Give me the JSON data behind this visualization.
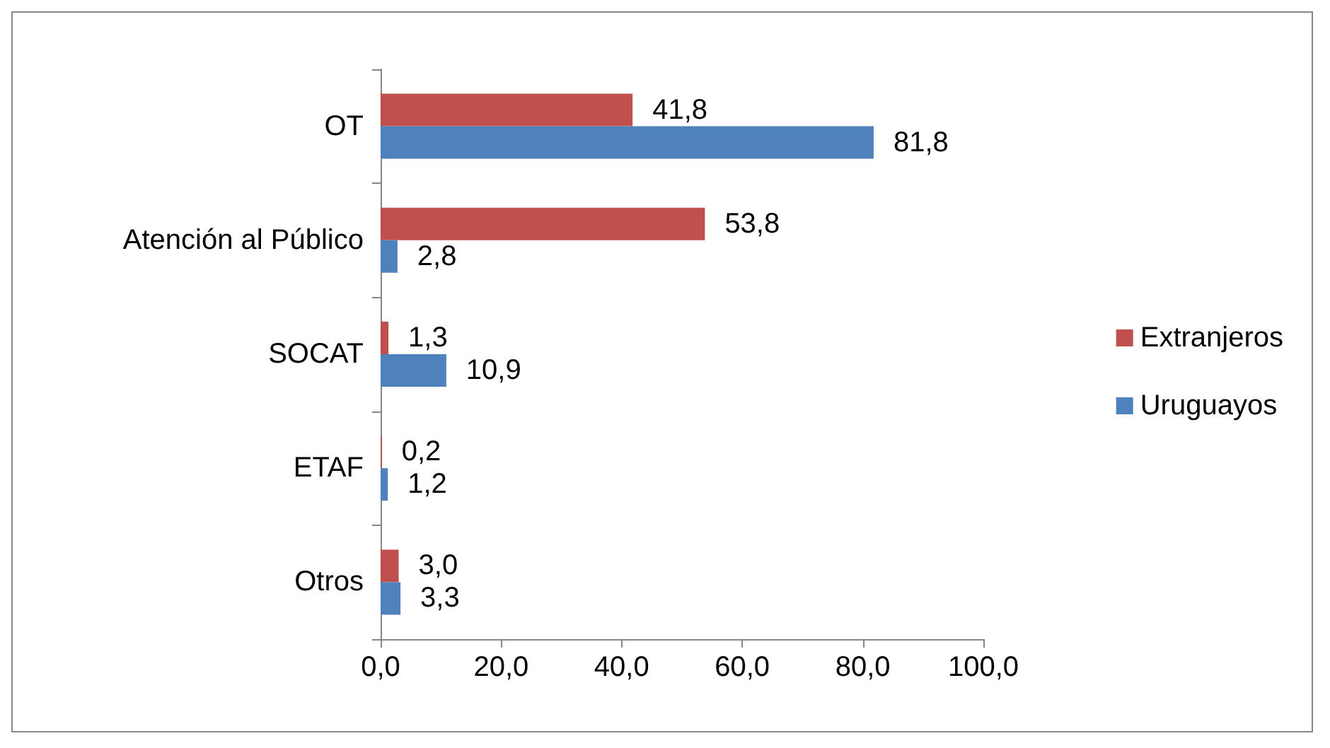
{
  "chart_data": {
    "type": "bar",
    "orientation": "horizontal",
    "categories": [
      "OT",
      "Atención al Público",
      "SOCAT",
      "ETAF",
      "Otros"
    ],
    "series": [
      {
        "name": "Extranjeros",
        "color": "#c0504d",
        "values": [
          41.8,
          53.8,
          1.3,
          0.2,
          3.0
        ],
        "value_labels": [
          "41,8",
          "53,8",
          "1,3",
          "0,2",
          "3,0"
        ]
      },
      {
        "name": "Uruguayos",
        "color": "#4f81bd",
        "values": [
          81.8,
          2.8,
          10.9,
          1.2,
          3.3
        ],
        "value_labels": [
          "81,8",
          "2,8",
          "10,9",
          "1,2",
          "3,3"
        ]
      }
    ],
    "xlim": [
      0,
      100
    ],
    "xticks": [
      {
        "value": 0,
        "label": "0,0"
      },
      {
        "value": 20,
        "label": "20,0"
      },
      {
        "value": 40,
        "label": "40,0"
      },
      {
        "value": 60,
        "label": "60,0"
      },
      {
        "value": 80,
        "label": "80,0"
      },
      {
        "value": 100,
        "label": "100,0"
      }
    ],
    "grid": false,
    "legend": "right"
  }
}
